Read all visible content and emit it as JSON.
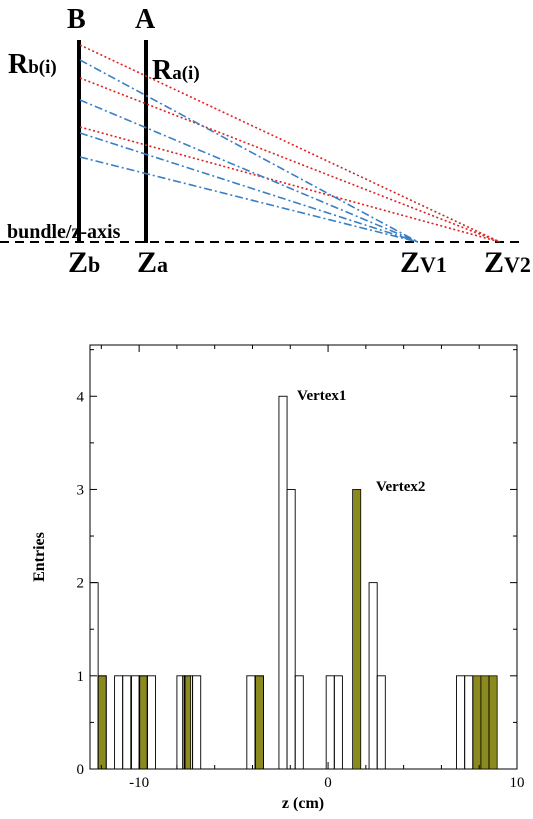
{
  "diagram": {
    "plane_b_label": "B",
    "plane_a_label": "A",
    "rb_main": "R",
    "rb_sub": "b(i)",
    "ra_main": "R",
    "ra_sub": "a(i)",
    "axis_label": "bundle/z-axis",
    "zb_main": "Z",
    "zb_sub": "b",
    "za_main": "Z",
    "za_sub": "a",
    "zv1_main": "Z",
    "zv1_sub": "V1",
    "zv2_main": "Z",
    "zv2_sub": "V2",
    "vertex1_track_color": "#3a7fc4",
    "vertex2_track_color": "#e02020"
  },
  "chart_data": {
    "type": "histogram",
    "xlabel": "z (cm)",
    "ylabel": "Entries",
    "xlim": [
      -12.6,
      10
    ],
    "ylim": [
      0,
      4.55
    ],
    "x_ticks": [
      -10,
      0,
      10
    ],
    "y_ticks": [
      0,
      1,
      2,
      3,
      4
    ],
    "bin_width": 0.43,
    "grid": false,
    "series": [
      {
        "name": "Vertex1",
        "style": "outline",
        "color": "#000000",
        "bins": [
          {
            "x": -12.6,
            "y": 2
          },
          {
            "x": -12.17,
            "y": 1
          },
          {
            "x": -11.3,
            "y": 1
          },
          {
            "x": -10.87,
            "y": 1
          },
          {
            "x": -10.4,
            "y": 1
          },
          {
            "x": -10.0,
            "y": 1
          },
          {
            "x": -9.56,
            "y": 1
          },
          {
            "x": -8.0,
            "y": 1
          },
          {
            "x": -7.6,
            "y": 1
          },
          {
            "x": -7.17,
            "y": 1
          },
          {
            "x": -4.3,
            "y": 1
          },
          {
            "x": -3.85,
            "y": 1
          },
          {
            "x": -2.6,
            "y": 4
          },
          {
            "x": -2.17,
            "y": 3
          },
          {
            "x": -1.74,
            "y": 1
          },
          {
            "x": -0.1,
            "y": 1
          },
          {
            "x": 0.33,
            "y": 1
          },
          {
            "x": 2.17,
            "y": 2
          },
          {
            "x": 2.6,
            "y": 1
          },
          {
            "x": 6.8,
            "y": 1
          },
          {
            "x": 7.23,
            "y": 1
          }
        ]
      },
      {
        "name": "Vertex2",
        "style": "filled",
        "color": "#8b8a1e",
        "bins": [
          {
            "x": -12.17,
            "y": 1
          },
          {
            "x": -10.0,
            "y": 1
          },
          {
            "x": -7.7,
            "y": 1
          },
          {
            "x": -3.85,
            "y": 1
          },
          {
            "x": 1.3,
            "y": 3
          },
          {
            "x": 7.66,
            "y": 1
          },
          {
            "x": 8.09,
            "y": 1
          },
          {
            "x": 8.52,
            "y": 1
          }
        ]
      }
    ]
  }
}
